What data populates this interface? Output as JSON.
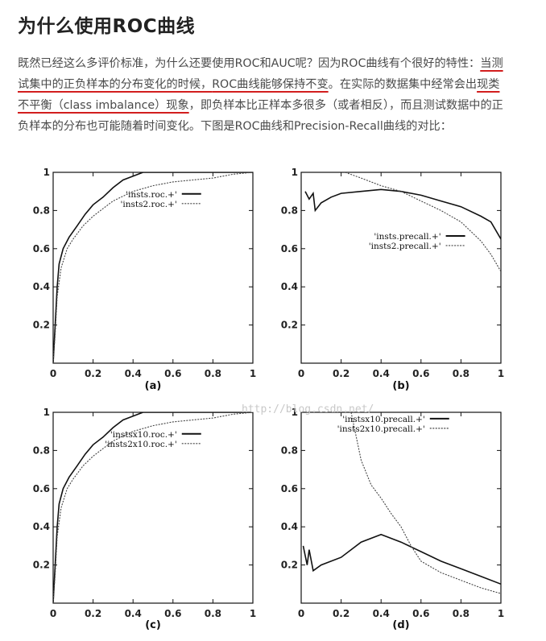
{
  "article": {
    "title": "为什么使用ROC曲线",
    "paragraph": {
      "line1_a": "既然已经这么多评价标准，为什么还要使用ROC和AUC呢？因为ROC曲线有个很好的特性：",
      "line1_b": "当测",
      "line2_a": "试集中的正负样本的分布变化的时候，",
      "line2_b": "ROC曲线能够保持不变",
      "line2_c": "。在实际的数据集中经常会出",
      "line2_d": "现类",
      "line3_a": "不平衡（class imbalance）现象",
      "line3_b": "，即负样本比正样本多很多（或者相反），而且测试数据中的正",
      "line4": "负样本的分布也可能随着时间变化。下图是ROC曲线和Precision-Recall曲线的对比："
    }
  },
  "figure": {
    "watermark": "http://blog.csdn.net/",
    "x_ticks": [
      "0",
      "0.2",
      "0.4",
      "0.6",
      "0.8",
      "1"
    ],
    "y_ticks": [
      "0",
      "0.2",
      "0.4",
      "0.6",
      "0.8",
      "1"
    ],
    "colors": {
      "text_underline": "#d21e1e",
      "series": "#111111"
    }
  },
  "chart_data": [
    {
      "type": "line",
      "caption": "(a)",
      "xlim": [
        0,
        1
      ],
      "ylim": [
        0,
        1
      ],
      "legend_position": "top-right",
      "series": [
        {
          "name": "'insts.roc.+'",
          "style": "solid",
          "points": [
            [
              0,
              0
            ],
            [
              0.01,
              0.2
            ],
            [
              0.02,
              0.4
            ],
            [
              0.03,
              0.52
            ],
            [
              0.05,
              0.6
            ],
            [
              0.08,
              0.66
            ],
            [
              0.12,
              0.72
            ],
            [
              0.16,
              0.78
            ],
            [
              0.2,
              0.83
            ],
            [
              0.25,
              0.87
            ],
            [
              0.3,
              0.92
            ],
            [
              0.35,
              0.96
            ],
            [
              0.4,
              0.98
            ],
            [
              0.45,
              1
            ],
            [
              1,
              1
            ]
          ]
        },
        {
          "name": "'insts2.roc.+'",
          "style": "dotted",
          "points": [
            [
              0,
              0
            ],
            [
              0.01,
              0.15
            ],
            [
              0.02,
              0.35
            ],
            [
              0.04,
              0.5
            ],
            [
              0.07,
              0.6
            ],
            [
              0.1,
              0.65
            ],
            [
              0.15,
              0.72
            ],
            [
              0.2,
              0.77
            ],
            [
              0.25,
              0.81
            ],
            [
              0.3,
              0.85
            ],
            [
              0.4,
              0.9
            ],
            [
              0.5,
              0.93
            ],
            [
              0.6,
              0.95
            ],
            [
              0.7,
              0.96
            ],
            [
              0.8,
              0.97
            ],
            [
              0.9,
              0.99
            ],
            [
              1,
              1
            ]
          ]
        }
      ]
    },
    {
      "type": "line",
      "caption": "(b)",
      "xlim": [
        0,
        1
      ],
      "ylim": [
        0,
        1
      ],
      "legend_position": "center-right",
      "series": [
        {
          "name": "'insts.precall.+'",
          "style": "solid",
          "points": [
            [
              0.02,
              0.9
            ],
            [
              0.04,
              0.86
            ],
            [
              0.06,
              0.89
            ],
            [
              0.07,
              0.8
            ],
            [
              0.1,
              0.84
            ],
            [
              0.15,
              0.87
            ],
            [
              0.2,
              0.89
            ],
            [
              0.3,
              0.9
            ],
            [
              0.4,
              0.91
            ],
            [
              0.5,
              0.9
            ],
            [
              0.6,
              0.88
            ],
            [
              0.7,
              0.85
            ],
            [
              0.8,
              0.82
            ],
            [
              0.9,
              0.77
            ],
            [
              0.95,
              0.74
            ],
            [
              1,
              0.65
            ]
          ]
        },
        {
          "name": "'insts2.precall.+'",
          "style": "dotted",
          "points": [
            [
              0.22,
              1
            ],
            [
              0.3,
              0.97
            ],
            [
              0.4,
              0.93
            ],
            [
              0.5,
              0.9
            ],
            [
              0.6,
              0.85
            ],
            [
              0.7,
              0.8
            ],
            [
              0.8,
              0.74
            ],
            [
              0.9,
              0.64
            ],
            [
              0.95,
              0.57
            ],
            [
              1,
              0.48
            ]
          ]
        }
      ]
    },
    {
      "type": "line",
      "caption": "(c)",
      "xlim": [
        0,
        1
      ],
      "ylim": [
        0,
        1
      ],
      "legend_position": "center-right",
      "series": [
        {
          "name": "'instsx10.roc.+'",
          "style": "solid",
          "points": [
            [
              0,
              0
            ],
            [
              0.01,
              0.2
            ],
            [
              0.02,
              0.4
            ],
            [
              0.03,
              0.52
            ],
            [
              0.05,
              0.6
            ],
            [
              0.08,
              0.66
            ],
            [
              0.12,
              0.72
            ],
            [
              0.16,
              0.78
            ],
            [
              0.2,
              0.83
            ],
            [
              0.25,
              0.87
            ],
            [
              0.3,
              0.92
            ],
            [
              0.35,
              0.96
            ],
            [
              0.4,
              0.98
            ],
            [
              0.45,
              1
            ],
            [
              1,
              1
            ]
          ]
        },
        {
          "name": "'insts2x10.roc.+'",
          "style": "dotted",
          "points": [
            [
              0,
              0
            ],
            [
              0.01,
              0.15
            ],
            [
              0.02,
              0.35
            ],
            [
              0.04,
              0.5
            ],
            [
              0.07,
              0.6
            ],
            [
              0.1,
              0.65
            ],
            [
              0.15,
              0.72
            ],
            [
              0.2,
              0.77
            ],
            [
              0.25,
              0.81
            ],
            [
              0.3,
              0.85
            ],
            [
              0.4,
              0.9
            ],
            [
              0.5,
              0.93
            ],
            [
              0.6,
              0.95
            ],
            [
              0.7,
              0.96
            ],
            [
              0.8,
              0.97
            ],
            [
              0.9,
              0.99
            ],
            [
              1,
              1
            ]
          ]
        }
      ]
    },
    {
      "type": "line",
      "caption": "(d)",
      "xlim": [
        0,
        1
      ],
      "ylim": [
        0,
        1
      ],
      "legend_position": "top-right",
      "series": [
        {
          "name": "'instsx10.precall.+'",
          "style": "solid",
          "points": [
            [
              0.01,
              0.3
            ],
            [
              0.03,
              0.2
            ],
            [
              0.04,
              0.28
            ],
            [
              0.06,
              0.17
            ],
            [
              0.1,
              0.2
            ],
            [
              0.2,
              0.24
            ],
            [
              0.3,
              0.32
            ],
            [
              0.4,
              0.36
            ],
            [
              0.5,
              0.32
            ],
            [
              0.6,
              0.27
            ],
            [
              0.7,
              0.22
            ],
            [
              0.8,
              0.18
            ],
            [
              0.9,
              0.14
            ],
            [
              1,
              0.1
            ]
          ]
        },
        {
          "name": "'insts2x10.precall.+'",
          "style": "dotted",
          "points": [
            [
              0.25,
              1
            ],
            [
              0.3,
              0.75
            ],
            [
              0.35,
              0.62
            ],
            [
              0.4,
              0.55
            ],
            [
              0.45,
              0.47
            ],
            [
              0.5,
              0.4
            ],
            [
              0.55,
              0.3
            ],
            [
              0.6,
              0.22
            ],
            [
              0.7,
              0.16
            ],
            [
              0.8,
              0.12
            ],
            [
              0.9,
              0.08
            ],
            [
              1,
              0.05
            ]
          ]
        }
      ]
    }
  ]
}
